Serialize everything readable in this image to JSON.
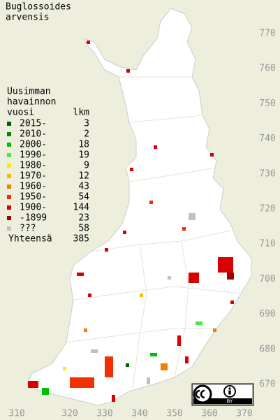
{
  "title": [
    "Buglossoides",
    "arvensis"
  ],
  "legend": {
    "heading": [
      "Uusimman",
      "havainnon",
      "vuosi"
    ],
    "count_heading": "lkm",
    "entries": [
      {
        "label": "2015-",
        "count": 3,
        "color": "#006000"
      },
      {
        "label": "2010-",
        "count": 2,
        "color": "#008800"
      },
      {
        "label": "2000-",
        "count": 18,
        "color": "#00c000"
      },
      {
        "label": "1990-",
        "count": 19,
        "color": "#40f040"
      },
      {
        "label": "1980-",
        "count": 9,
        "color": "#f0f000"
      },
      {
        "label": "1970-",
        "count": 12,
        "color": "#f0c000"
      },
      {
        "label": "1960-",
        "count": 43,
        "color": "#f08000"
      },
      {
        "label": "1950-",
        "count": 54,
        "color": "#f03000"
      },
      {
        "label": "1900-",
        "count": 144,
        "color": "#d80000"
      },
      {
        "label": "-1899",
        "count": 23,
        "color": "#a00000"
      },
      {
        "label": "???",
        "count": 58,
        "color": "#c0c0c0"
      }
    ],
    "total_label": "Yhteensä",
    "total": 385
  },
  "y_labels": [
    770,
    760,
    750,
    740,
    730,
    720,
    710,
    700,
    690,
    680,
    670
  ],
  "x_labels": [
    310,
    320,
    330,
    340,
    350,
    360,
    370
  ],
  "license": "BY"
}
